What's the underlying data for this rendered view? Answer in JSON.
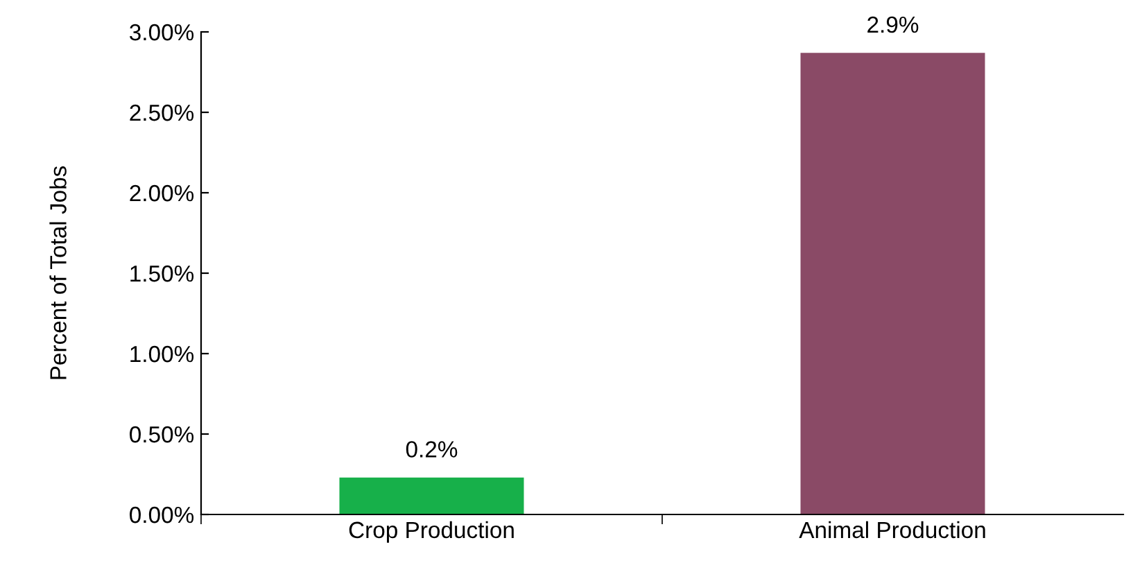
{
  "chart_data": {
    "type": "bar",
    "ylabel": "Percent of Total Jobs",
    "categories": [
      "Crop Production",
      "Animal Production"
    ],
    "values": [
      0.23,
      2.87
    ],
    "colors": [
      "#17b04a",
      "#8a4a66"
    ],
    "value_labels": [
      "0.2%",
      "2.9%"
    ],
    "ylim": [
      0,
      3
    ],
    "yticks": [
      {
        "value": 0,
        "label": "0.00%"
      },
      {
        "value": 0.5,
        "label": "0.50%"
      },
      {
        "value": 1,
        "label": "1.00%"
      },
      {
        "value": 1.5,
        "label": "1.50%"
      },
      {
        "value": 2,
        "label": "2.00%"
      },
      {
        "value": 2.5,
        "label": "2.50%"
      },
      {
        "value": 3,
        "label": "3.00%"
      }
    ],
    "grid": false
  }
}
